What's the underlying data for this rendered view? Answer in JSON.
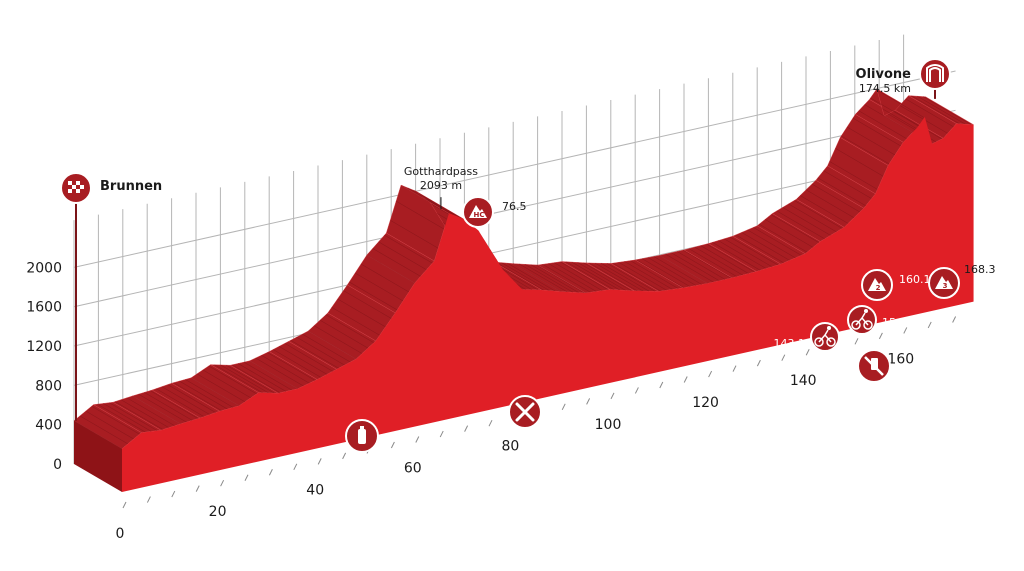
{
  "chart_data": {
    "type": "area",
    "xlabel": "",
    "ylabel": "",
    "x_ticks": [
      "0",
      "20",
      "40",
      "60",
      "80",
      "100",
      "120",
      "140",
      "160"
    ],
    "y_ticks": [
      "0",
      "400",
      "800",
      "1200",
      "1600",
      "2000"
    ],
    "xlim": [
      0,
      174.5
    ],
    "ylim": [
      0,
      2400
    ],
    "grid": true,
    "series": [
      {
        "points": [
          [
            0,
            440
          ],
          [
            4,
            560
          ],
          [
            8,
            540
          ],
          [
            12,
            560
          ],
          [
            16,
            575
          ],
          [
            20,
            600
          ],
          [
            24,
            610
          ],
          [
            28,
            700
          ],
          [
            32,
            650
          ],
          [
            36,
            650
          ],
          [
            40,
            700
          ],
          [
            44,
            760
          ],
          [
            48,
            820
          ],
          [
            52,
            960
          ],
          [
            56,
            1200
          ],
          [
            60,
            1460
          ],
          [
            64,
            1640
          ],
          [
            67,
            2093
          ],
          [
            70,
            2000
          ],
          [
            73,
            1850
          ],
          [
            78,
            1400
          ],
          [
            82,
            1150
          ],
          [
            86,
            1100
          ],
          [
            90,
            1040
          ],
          [
            95,
            970
          ],
          [
            100,
            950
          ],
          [
            105,
            880
          ],
          [
            110,
            820
          ],
          [
            115,
            800
          ],
          [
            120,
            790
          ],
          [
            125,
            790
          ],
          [
            130,
            800
          ],
          [
            135,
            820
          ],
          [
            140,
            870
          ],
          [
            143.1,
            960
          ],
          [
            148,
            1050
          ],
          [
            152,
            1200
          ],
          [
            154.4,
            1320
          ],
          [
            157,
            1580
          ],
          [
            160.1,
            1780
          ],
          [
            163,
            1900
          ],
          [
            164.5,
            1990
          ],
          [
            166,
            1700
          ],
          [
            168.3,
            1730
          ],
          [
            171,
            1850
          ],
          [
            174.5,
            1800
          ]
        ]
      }
    ],
    "start": {
      "name": "Brunnen",
      "icon": "checkered-flag-icon"
    },
    "finish": {
      "name": "Olivone",
      "distance": "174.5 km",
      "icon": "finish-arch-icon"
    },
    "summit": {
      "name": "Gotthardpass",
      "elevation": "2093 m",
      "km": 67
    },
    "climbs": [
      {
        "km": 76.5,
        "label": "76.5",
        "category": "HC",
        "icon": "mountain-hc-icon"
      },
      {
        "km": 160.1,
        "label": "160.1",
        "category": "2",
        "icon": "mountain-cat-2-icon"
      },
      {
        "km": 168.3,
        "label": "168.3",
        "category": "3",
        "icon": "mountain-cat-3-icon"
      }
    ],
    "sprints": [
      {
        "km": 143.1,
        "label": "143.1",
        "icon": "cyclist-sprint-icon"
      },
      {
        "km": 154.4,
        "label": "154.4",
        "icon": "cyclist-sprint-icon"
      }
    ],
    "markers": [
      {
        "km": 47,
        "icon": "water-bottle-icon",
        "meaning": "feed-zone-bottle"
      },
      {
        "km": 83,
        "icon": "fork-knife-icon",
        "meaning": "feed-zone"
      },
      {
        "km": 155,
        "icon": "no-litter-icon",
        "meaning": "no-littering-zone"
      }
    ],
    "colors": {
      "face": "#e01f26",
      "top": "#a81d22",
      "side": "#8e1317",
      "grid": "#b5b5b5",
      "icon_bg": "#a81d22",
      "pole": "#7b1418"
    }
  }
}
